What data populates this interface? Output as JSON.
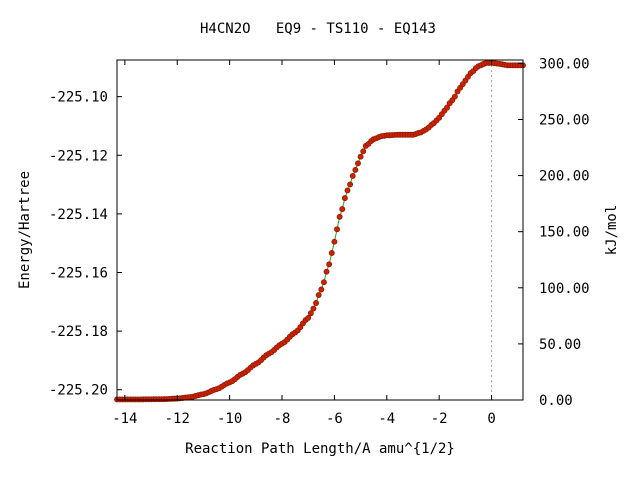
{
  "chart_data": {
    "type": "scatter",
    "title": "H4CN2O   EQ9 - TS110 - EQ143",
    "xlabel": "Reaction Path Length/A amu^{1/2}",
    "ylabel": "Energy/Hartree",
    "y2label": "kJ/mol",
    "xlim": [
      -14.3,
      1.2
    ],
    "ylim": [
      -225.2035,
      -225.0875
    ],
    "y2lim": [
      0.0,
      303.0
    ],
    "x_ticks": [
      -14,
      -12,
      -10,
      -8,
      -6,
      -4,
      -2,
      0
    ],
    "x_tick_labels": [
      "-14",
      "-12",
      "-10",
      "-8",
      "-6",
      "-4",
      "-2",
      "0"
    ],
    "y_ticks": [
      -225.2,
      -225.18,
      -225.16,
      -225.14,
      -225.12,
      -225.1
    ],
    "y_tick_labels": [
      "-225.20",
      "-225.18",
      "-225.16",
      "-225.14",
      "-225.12",
      "-225.10"
    ],
    "y2_ticks": [
      0,
      50,
      100,
      150,
      200,
      250,
      300
    ],
    "y2_tick_labels": [
      "0.00",
      "50.00",
      "100.00",
      "150.00",
      "200.00",
      "250.00",
      "300.00"
    ],
    "vline_x": 0,
    "grid": false,
    "marker_color": "#cc2200",
    "marker_edge_color": "#8b1a00",
    "line_color": "#2ca02c",
    "vline_color": "#a0a0a0",
    "series": [
      {
        "x": [
          -14.3,
          -13.5,
          -12.5,
          -12.0,
          -11.5,
          -11.0,
          -10.5,
          -10.0,
          -9.5,
          -9.0,
          -8.5,
          -8.0,
          -7.5,
          -7.0,
          -6.8,
          -6.5,
          -6.2,
          -6.0,
          -5.8,
          -5.5,
          -5.2,
          -5.0,
          -4.8,
          -4.5,
          -4.2,
          -4.0,
          -3.5,
          -3.0,
          -2.7,
          -2.5,
          -2.2,
          -2.0,
          -1.8,
          -1.5,
          -1.2,
          -1.0,
          -0.8,
          -0.5,
          -0.2,
          0.0,
          0.3,
          0.6,
          0.9,
          1.2
        ],
        "y": [
          -225.2033,
          -225.2033,
          -225.2032,
          -225.203,
          -225.2025,
          -225.2015,
          -225.1998,
          -225.1975,
          -225.1945,
          -225.1912,
          -225.1877,
          -225.1843,
          -225.1805,
          -225.1755,
          -225.1723,
          -225.1658,
          -225.1572,
          -225.1495,
          -225.141,
          -225.132,
          -225.125,
          -225.1205,
          -225.1168,
          -225.1145,
          -225.1135,
          -225.1132,
          -225.113,
          -225.113,
          -225.1122,
          -225.1112,
          -225.109,
          -225.1072,
          -225.1048,
          -225.1012,
          -225.097,
          -225.0945,
          -225.092,
          -225.0896,
          -225.0885,
          -225.0885,
          -225.0888,
          -225.0893,
          -225.0893,
          -225.0893
        ]
      }
    ]
  }
}
